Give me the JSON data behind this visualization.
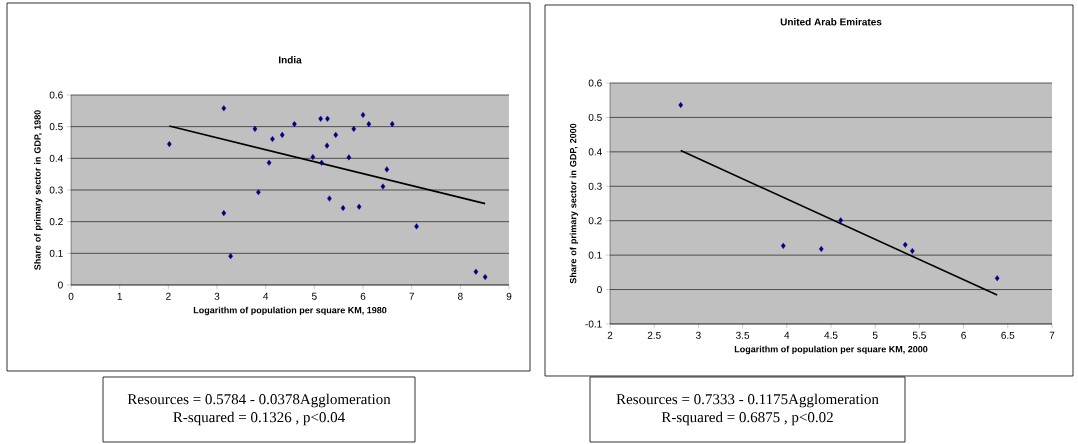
{
  "chart_data": [
    {
      "type": "scatter",
      "title": "India",
      "xlabel": "Logarithm of population per square KM, 1980",
      "ylabel": "Share of primary sector in GDP, 1980",
      "xlim": [
        0,
        9
      ],
      "xticks": [
        0,
        1,
        2,
        3,
        4,
        5,
        6,
        7,
        8,
        9
      ],
      "ylim": [
        0,
        0.6
      ],
      "yticks": [
        0,
        0.1,
        0.2,
        0.3,
        0.4,
        0.5,
        0.6
      ],
      "grid": "y",
      "series": [
        {
          "color": "#000080",
          "marker": "diamond",
          "x": [
            2.02,
            3.14,
            3.14,
            3.28,
            3.78,
            3.85,
            4.07,
            4.14,
            4.34,
            4.59,
            4.97,
            5.13,
            5.15,
            5.27,
            5.26,
            5.31,
            5.44,
            5.59,
            5.71,
            5.81,
            5.92,
            6.0,
            6.12,
            6.41,
            6.49,
            6.6,
            7.1,
            8.32,
            8.51
          ],
          "values": [
            0.445,
            0.558,
            0.227,
            0.091,
            0.493,
            0.293,
            0.386,
            0.461,
            0.474,
            0.508,
            0.404,
            0.525,
            0.386,
            0.525,
            0.44,
            0.273,
            0.474,
            0.243,
            0.403,
            0.493,
            0.247,
            0.537,
            0.508,
            0.311,
            0.365,
            0.508,
            0.185,
            0.042,
            0.025
          ]
        },
        {
          "type": "line",
          "color": "#000000",
          "marker": "none",
          "x": [
            2.02,
            8.51
          ],
          "values": [
            0.502,
            0.257
          ]
        }
      ],
      "annotations": [
        "Resources = 0.5784 - 0.0378Agglomeration",
        "R-squared = 0.1326 , p<0.04"
      ]
    },
    {
      "type": "scatter",
      "title": "United Arab Emirates",
      "xlabel": "Logarithm of population per square KM, 2000",
      "ylabel": "Share of primary sector in GDP, 2000",
      "xlim": [
        2,
        7
      ],
      "xticks": [
        2,
        2.5,
        3,
        3.5,
        4,
        4.5,
        5,
        5.5,
        6,
        6.5,
        7
      ],
      "ylim": [
        -0.1,
        0.6
      ],
      "yticks": [
        -0.1,
        0,
        0.1,
        0.2,
        0.3,
        0.4,
        0.5,
        0.6
      ],
      "grid": "y",
      "series": [
        {
          "color": "#000080",
          "marker": "diamond",
          "x": [
            2.8,
            3.96,
            4.39,
            4.61,
            5.34,
            5.42,
            6.38
          ],
          "values": [
            0.536,
            0.127,
            0.118,
            0.201,
            0.13,
            0.112,
            0.033
          ]
        },
        {
          "type": "line",
          "color": "#000000",
          "marker": "none",
          "x": [
            2.8,
            6.38
          ],
          "values": [
            0.404,
            -0.016
          ]
        }
      ],
      "annotations": [
        "Resources = 0.7333 - 0.1175Agglomeration",
        "R-squared = 0.6875 , p<0.02"
      ]
    }
  ]
}
